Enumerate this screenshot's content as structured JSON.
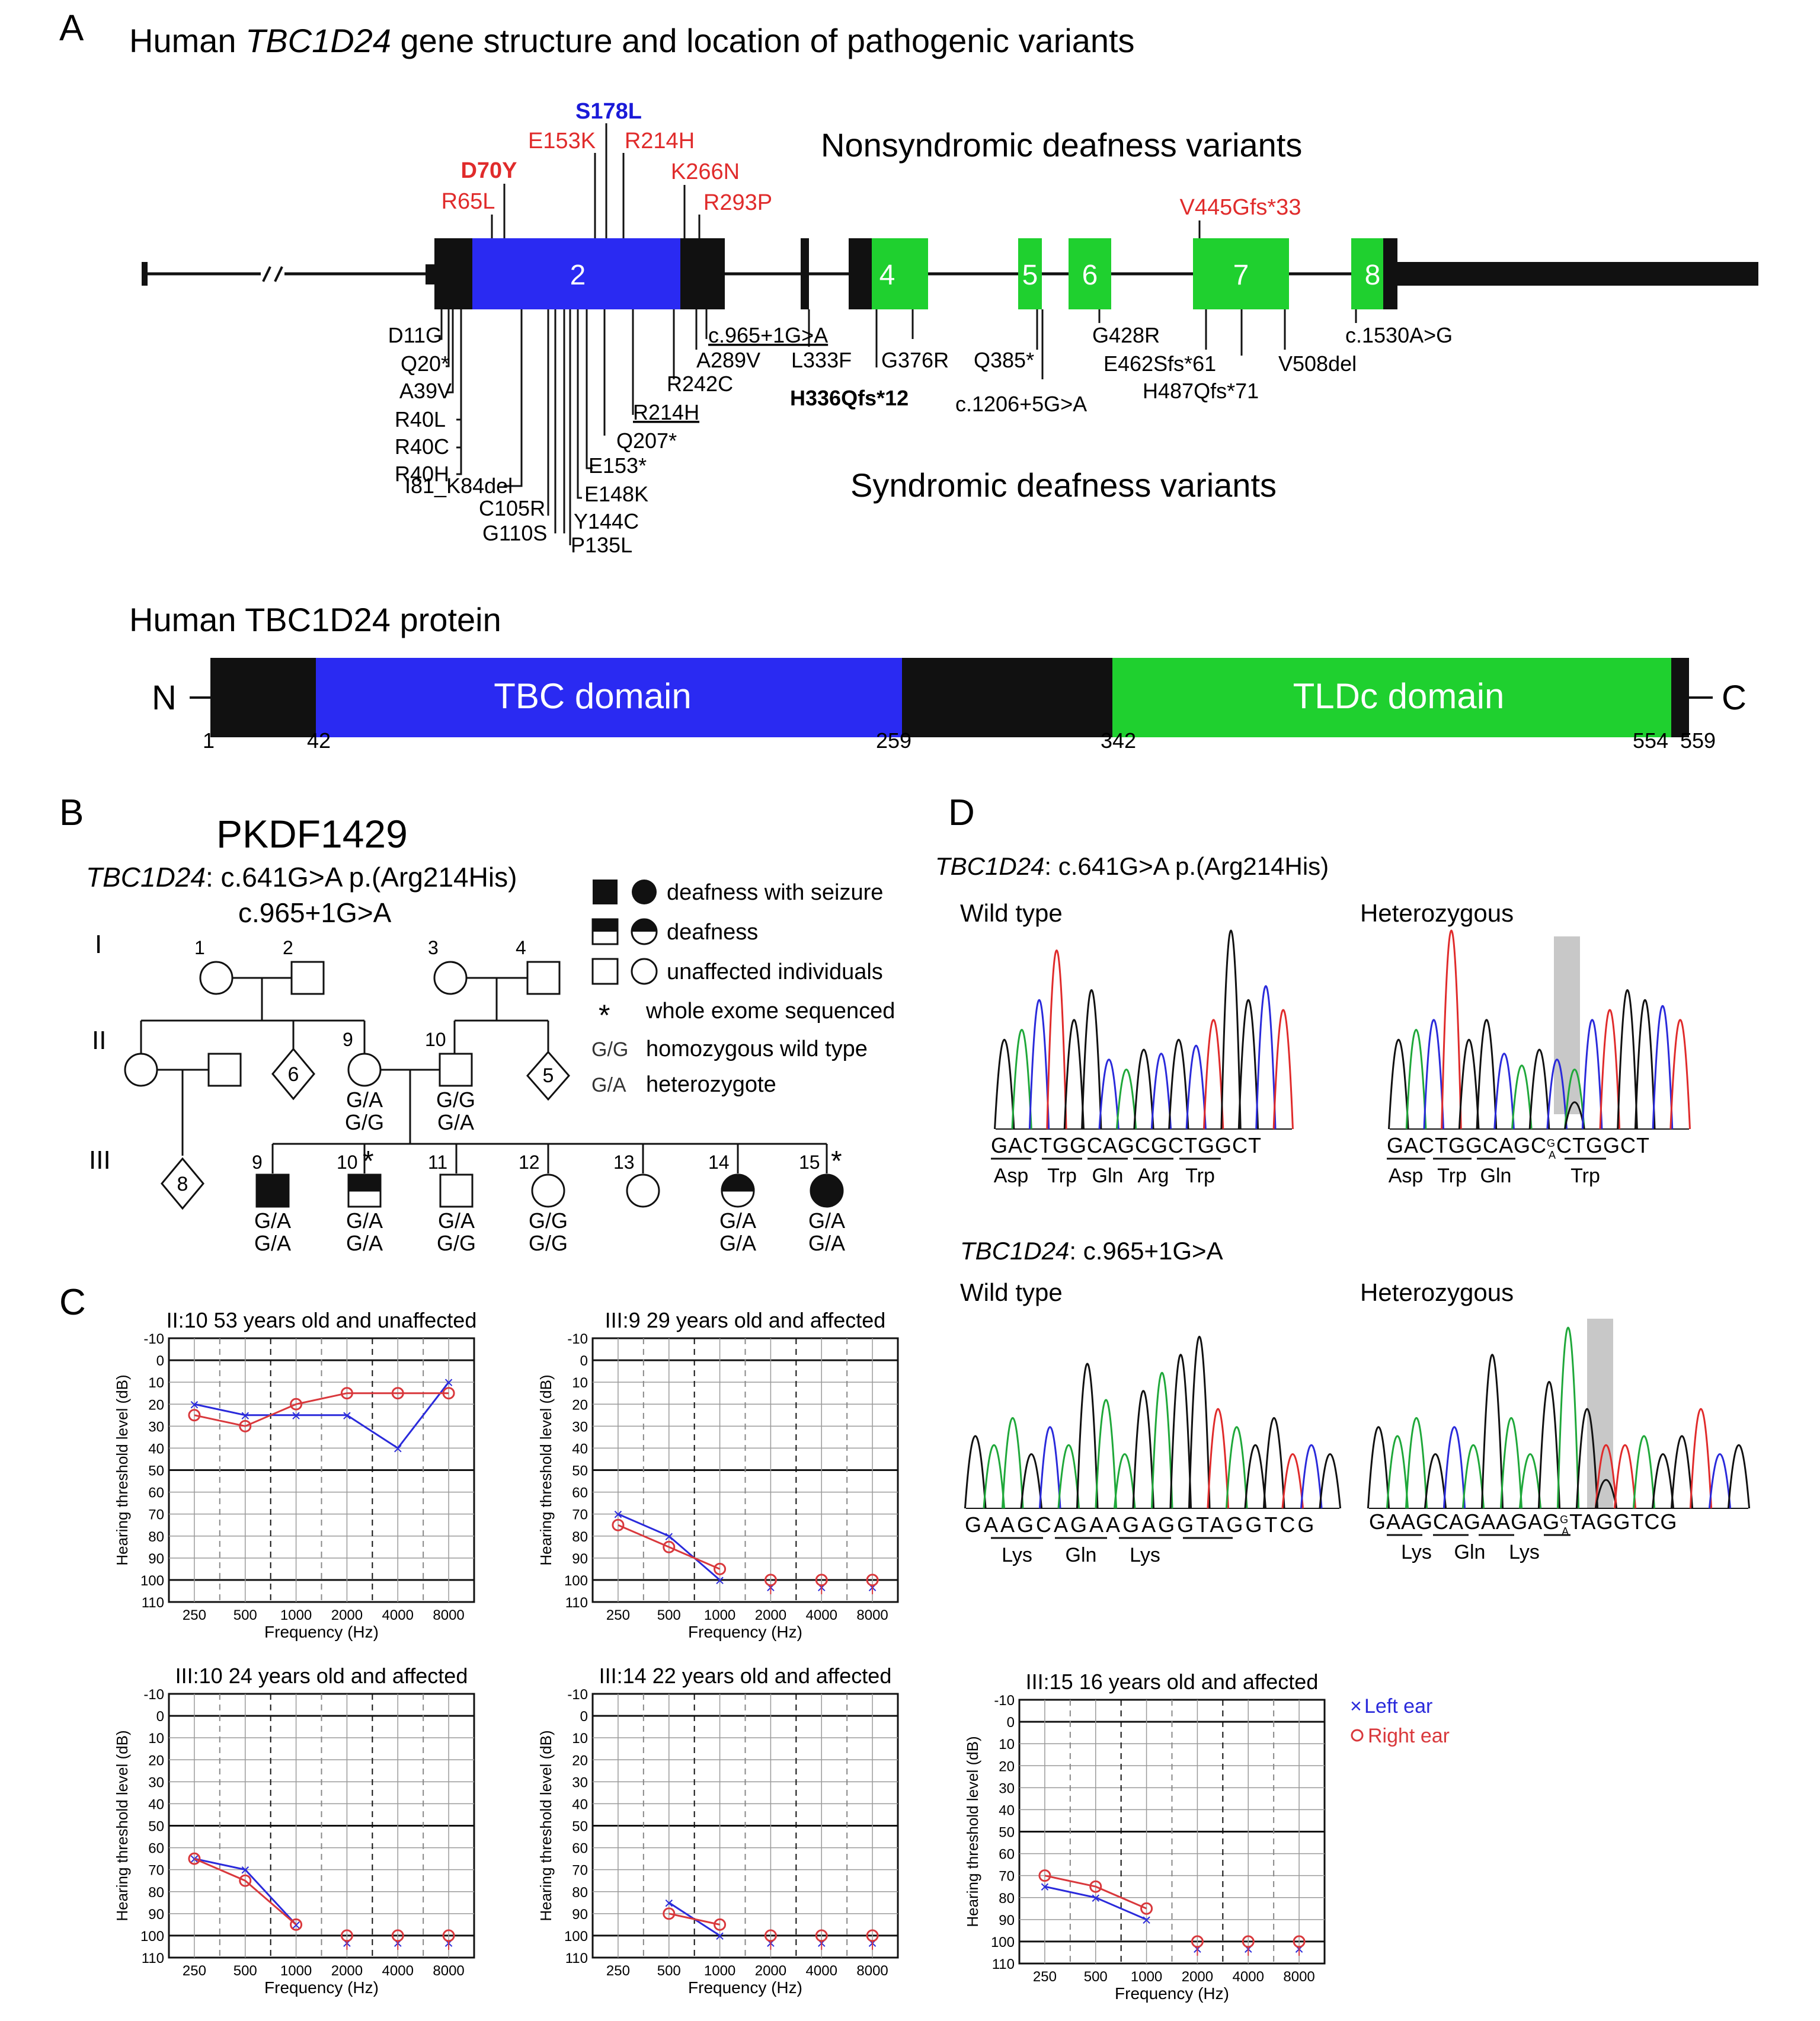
{
  "panelA": {
    "letter": "A",
    "title_pre": "Human ",
    "title_gene": "TBC1D24",
    "title_post": " gene structure and location of pathogenic variants",
    "nonsyndromic_label": "Nonsyndromic deafness variants",
    "syndromic_label": "Syndromic deafness variants",
    "exon_labels": [
      "2",
      "4",
      "5",
      "6",
      "7",
      "8"
    ],
    "top_variants": [
      "R65L",
      "D70Y",
      "E153K",
      "S178L",
      "R214H",
      "K266N",
      "R293P",
      "V445Gfs*33"
    ],
    "bottom_variants": [
      "D11G",
      "Q20*",
      "A39V",
      "R40L",
      "R40C",
      "R40H",
      "I81_K84del",
      "C105R",
      "G110S",
      "Y144C",
      "P135L",
      "E148K",
      "E153*",
      "Q207*",
      "R214H",
      "R242C",
      "A289V",
      "c.965+1G>A",
      "L333F",
      "H336Qfs*12",
      "G376R",
      "Q385*",
      "c.1206+5G>A",
      "G428R",
      "E462Sfs*61",
      "H487Qfs*71",
      "V508del",
      "c.1530A>G"
    ],
    "protein_title": "Human TBC1D24 protein",
    "n_label": "N",
    "c_label": "C",
    "tbc_domain": "TBC domain",
    "tldc_domain": "TLDc domain",
    "positions": [
      "1",
      "42",
      "259",
      "342",
      "554",
      "559"
    ]
  },
  "panelB": {
    "letter": "B",
    "family": "PKDF1429",
    "gene": "TBC1D24",
    "variant1": ": c.641G>A p.(Arg214His)",
    "variant2": "c.965+1G>A",
    "generations": [
      "I",
      "II",
      "III"
    ],
    "individual_numbers": [
      "1",
      "2",
      "3",
      "4",
      "9",
      "10",
      "9",
      "10",
      "11",
      "12",
      "13",
      "14",
      "15"
    ],
    "sibling_counts": [
      "6",
      "5",
      "8"
    ],
    "legend": {
      "seizure": "deafness with seizure",
      "deafness": "deafness",
      "unaffected": "unaffected individuals",
      "asterisk": "*",
      "wes": "whole exome sequenced",
      "gg_code": "G/G",
      "gg_text": "homozygous wild type",
      "ga_code": "G/A",
      "ga_text": "heterozygote"
    },
    "genotypes": {
      "II9": [
        "G/A",
        "G/G"
      ],
      "II10": [
        "G/G",
        "G/A"
      ],
      "III9": [
        "G/A",
        "G/A"
      ],
      "III10": [
        "G/A",
        "G/A"
      ],
      "III11": [
        "G/A",
        "G/G"
      ],
      "III12": [
        "G/G",
        "G/G"
      ],
      "III14": [
        "G/A",
        "G/A"
      ],
      "III15": [
        "G/A",
        "G/A"
      ]
    }
  },
  "panelC": {
    "letter": "C",
    "ylabel": "Hearing threshold level (dB)",
    "xlabel": "Frequency (Hz)",
    "x_ticks": [
      "250",
      "500",
      "1000",
      "2000",
      "4000",
      "8000"
    ],
    "y_ticks": [
      "-10",
      "0",
      "10",
      "20",
      "30",
      "40",
      "50",
      "60",
      "70",
      "80",
      "90",
      "100",
      "110"
    ],
    "legend_left": "Left ear",
    "legend_right": "Right ear",
    "colors": {
      "left": "#2a2adb",
      "right": "#d9383c"
    }
  },
  "chart_data": [
    {
      "type": "line",
      "title": "II:10 53 years old and unaffected",
      "xlabel": "Frequency (Hz)",
      "ylabel": "Hearing threshold level (dB)",
      "categories": [
        "250",
        "500",
        "1000",
        "2000",
        "4000",
        "8000"
      ],
      "ylim": [
        110,
        -10
      ],
      "series": [
        {
          "name": "Left ear",
          "values": [
            20,
            25,
            25,
            25,
            40,
            10
          ]
        },
        {
          "name": "Right ear",
          "values": [
            25,
            30,
            20,
            15,
            15,
            15
          ]
        }
      ]
    },
    {
      "type": "line",
      "title": "III:9 29 years old and affected",
      "xlabel": "Frequency (Hz)",
      "ylabel": "Hearing threshold level (dB)",
      "categories": [
        "250",
        "500",
        "1000",
        "2000",
        "4000",
        "8000"
      ],
      "ylim": [
        110,
        -10
      ],
      "series": [
        {
          "name": "Left ear",
          "values": [
            70,
            80,
            100,
            100,
            100,
            100
          ]
        },
        {
          "name": "Right ear",
          "values": [
            75,
            85,
            95,
            100,
            100,
            100
          ]
        }
      ]
    },
    {
      "type": "line",
      "title": "III:10 24 years old and affected",
      "xlabel": "Frequency (Hz)",
      "ylabel": "Hearing threshold level (dB)",
      "categories": [
        "250",
        "500",
        "1000",
        "2000",
        "4000",
        "8000"
      ],
      "ylim": [
        110,
        -10
      ],
      "series": [
        {
          "name": "Left ear",
          "values": [
            65,
            70,
            95,
            100,
            100,
            100
          ]
        },
        {
          "name": "Right ear",
          "values": [
            65,
            75,
            95,
            100,
            100,
            100
          ]
        }
      ]
    },
    {
      "type": "line",
      "title": "III:14 22 years old and affected",
      "xlabel": "Frequency (Hz)",
      "ylabel": "Hearing threshold level (dB)",
      "categories": [
        "250",
        "500",
        "1000",
        "2000",
        "4000",
        "8000"
      ],
      "ylim": [
        110,
        -10
      ],
      "series": [
        {
          "name": "Left ear",
          "values": [
            null,
            85,
            100,
            100,
            100,
            100
          ]
        },
        {
          "name": "Right ear",
          "values": [
            null,
            90,
            95,
            100,
            100,
            100
          ]
        }
      ]
    },
    {
      "type": "line",
      "title": "III:15 16 years old and affected",
      "xlabel": "Frequency (Hz)",
      "ylabel": "Hearing threshold level (dB)",
      "categories": [
        "250",
        "500",
        "1000",
        "2000",
        "4000",
        "8000"
      ],
      "ylim": [
        110,
        -10
      ],
      "series": [
        {
          "name": "Left ear",
          "values": [
            75,
            80,
            90,
            100,
            100,
            100
          ]
        },
        {
          "name": "Right ear",
          "values": [
            70,
            75,
            85,
            100,
            100,
            100
          ]
        }
      ]
    }
  ],
  "panelD": {
    "letter": "D",
    "gene": "TBC1D24",
    "variant1": ": c.641G>A p.(Arg214His)",
    "variant2": ": c.965+1G>A",
    "wild_type": "Wild type",
    "heterozygous": "Heterozygous",
    "seq1_wt": "GACTGGCAGCGCTGGCT",
    "seq1_het_a": "GACTGGCAGC",
    "seq1_het_top": "G",
    "seq1_het_bot": "A",
    "seq1_het_b": "CTGGCT",
    "aa1_wt": [
      "Asp",
      "Trp",
      "Gln",
      "Arg",
      "Trp"
    ],
    "aa1_het": [
      "Asp",
      "Trp",
      "Gln",
      "Trp"
    ],
    "seq2_wt": "GAAGCAGAAGAGGTAGGTCG",
    "seq2_het_a": "GAAGCAGAAGAG",
    "seq2_het_top": "G",
    "seq2_het_bot": "A",
    "seq2_het_b": "TAGGTCG",
    "aa2": [
      "Lys",
      "Gln",
      "Lys"
    ]
  }
}
